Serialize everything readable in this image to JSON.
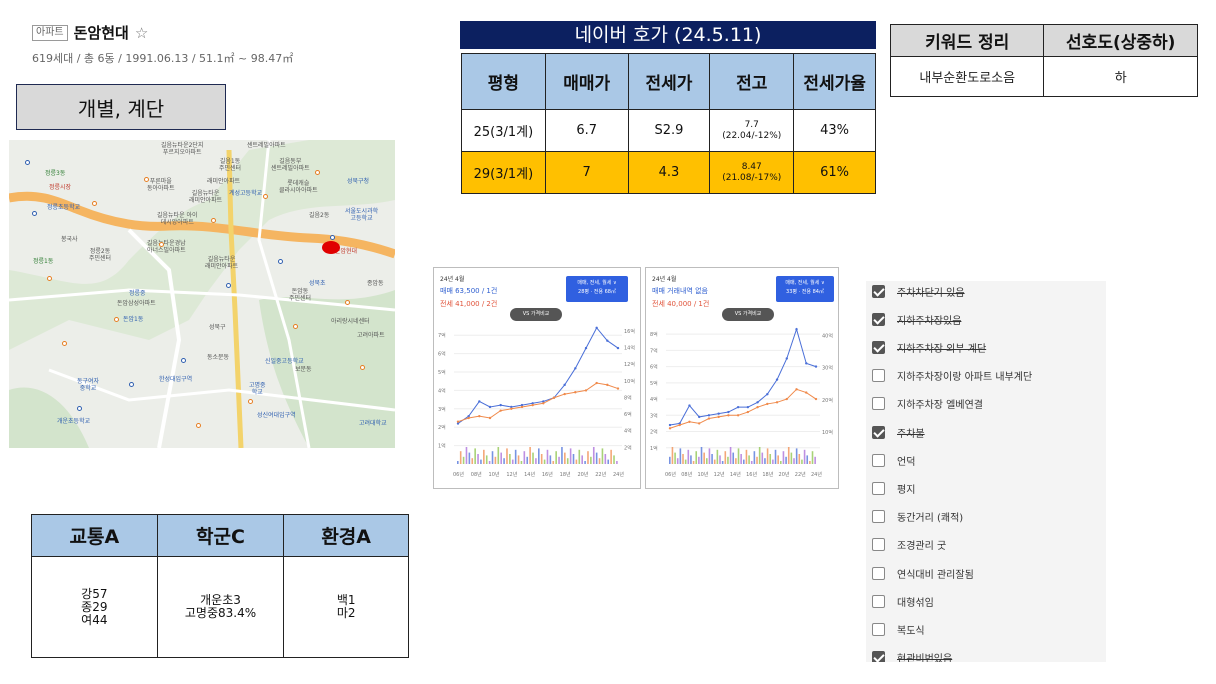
{
  "header": {
    "type_tag": "아파트",
    "name": "돈암현대",
    "star": "☆",
    "info": "619세대 / 총 6동 / 1991.06.13 / 51.1㎡ ~ 98.47㎡"
  },
  "category": "개별, 계단",
  "map": {
    "labels": [
      {
        "t": "길음뉴타운2단지\n푸르지오아파트"
      },
      {
        "t": "센트레빌아파트"
      },
      {
        "t": "길음1동\n주민센터"
      },
      {
        "t": "길음동부\n센트레빌아파트"
      },
      {
        "t": "정릉3동"
      },
      {
        "t": "래미안아파트"
      },
      {
        "t": "롯데캐슬\n클라시아아파트"
      },
      {
        "t": "성북구청"
      },
      {
        "t": "정릉시장"
      },
      {
        "t": "계성고등학교"
      },
      {
        "t": "푸른마을\n동아아파트"
      },
      {
        "t": "길음뉴타운\n래미안아파트"
      },
      {
        "t": "서울도시과학\n고등학교"
      },
      {
        "t": "정릉초등학교"
      },
      {
        "t": "길음뉴타운 아이\n데시앙아파트"
      },
      {
        "t": "길음2동"
      },
      {
        "t": "봉국사"
      },
      {
        "t": "정릉2동\n주민센터"
      },
      {
        "t": "길음뉴타운경남\n아너스빌아파트"
      },
      {
        "t": "정릉1동"
      },
      {
        "t": "길음뉴타운\n래미안아파트"
      },
      {
        "t": "돈암현대"
      },
      {
        "t": "성북초"
      },
      {
        "t": "돈암동\n주민센터"
      },
      {
        "t": "정릉중"
      },
      {
        "t": "종암동"
      },
      {
        "t": "돈암삼성아파트"
      },
      {
        "t": "돈암1동"
      },
      {
        "t": "아리랑시네센터"
      },
      {
        "t": "고려아파트"
      },
      {
        "t": "성북구"
      },
      {
        "t": "신일중고등학교"
      },
      {
        "t": "고명중\n학교"
      },
      {
        "t": "동소문동"
      },
      {
        "t": "한성대입구역"
      },
      {
        "t": "성신여대입구역"
      },
      {
        "t": "동구여자\n중학교"
      },
      {
        "t": "개운초등학교"
      },
      {
        "t": "보문동"
      },
      {
        "t": "고려대학교"
      }
    ],
    "dots": 22
  },
  "price": {
    "title": "네이버 호가 (24.5.11)",
    "headers": [
      "평형",
      "매매가",
      "전세가",
      "전고",
      "전세가율"
    ],
    "rows": [
      {
        "size": "25(3/1계)",
        "sale": "6.7",
        "jeonse": "S2.9",
        "peak": "7.7",
        "peak_sub": "(22.04/-12%)",
        "ratio": "43%",
        "highlight": false
      },
      {
        "size": "29(3/1계)",
        "sale": "7",
        "jeonse": "4.3",
        "peak": "8.47",
        "peak_sub": "(21.08/-17%)",
        "ratio": "61%",
        "highlight": true
      }
    ]
  },
  "keywords": {
    "headers": [
      "키워드 정리",
      "선호도(상중하)"
    ],
    "row": [
      "내부순환도로소음",
      "하"
    ]
  },
  "charts": [
    {
      "date": "24년 4월",
      "sale": "매매 63,500 / 1건",
      "rent": "전세 41,000 / 2건",
      "button_line1": "매매, 전세, 월세 ∨",
      "button_line2": "28평 · 전용 68㎡",
      "vs": "VS 가격비교"
    },
    {
      "date": "24년 4월",
      "sale": "매매 거래내역 없음",
      "rent": "전세 40,000 / 1건",
      "button_line1": "매매, 전세, 월세 ∨",
      "button_line2": "33평 · 전용 84㎡",
      "vs": "VS 가격비교"
    }
  ],
  "chart_data": [
    {
      "type": "line",
      "x_ticks": [
        "06년",
        "08년",
        "10년",
        "12년",
        "14년",
        "16년",
        "18년",
        "20년",
        "22년",
        "24년"
      ],
      "y_left_ticks": [
        "1억",
        "2억",
        "3억",
        "4억",
        "5억",
        "6억",
        "7억"
      ],
      "y_right_ticks": [
        "2억",
        "4억",
        "6억",
        "8억",
        "10억",
        "12억",
        "14억",
        "16억"
      ],
      "series": [
        {
          "name": "매매",
          "color": "#4a6fd8",
          "values": [
            2.2,
            2.6,
            3.4,
            3.1,
            3.2,
            3.1,
            3.2,
            3.3,
            3.4,
            3.6,
            4.3,
            5.2,
            6.3,
            7.4,
            6.7,
            6.3
          ]
        },
        {
          "name": "전세",
          "color": "#f08a4b",
          "values": [
            2.3,
            2.5,
            2.6,
            2.5,
            2.9,
            3.0,
            3.1,
            3.2,
            3.3,
            3.6,
            3.8,
            3.9,
            4.0,
            4.4,
            4.3,
            4.1
          ]
        }
      ]
    },
    {
      "type": "line",
      "x_ticks": [
        "06년",
        "08년",
        "10년",
        "12년",
        "14년",
        "16년",
        "18년",
        "20년",
        "22년",
        "24년"
      ],
      "y_left_ticks": [
        "1억",
        "2억",
        "3억",
        "4억",
        "5억",
        "6억",
        "7억",
        "8억"
      ],
      "y_right_ticks": [
        "10억",
        "20억",
        "30억",
        "40억"
      ],
      "series": [
        {
          "name": "매매",
          "color": "#4a6fd8",
          "values": [
            2.4,
            2.5,
            3.6,
            2.9,
            3.0,
            3.1,
            3.2,
            3.5,
            3.5,
            3.8,
            4.3,
            5.2,
            6.5,
            8.3,
            6.2,
            6.0
          ]
        },
        {
          "name": "전세",
          "color": "#f08a4b",
          "values": [
            2.2,
            2.4,
            2.6,
            2.5,
            2.8,
            2.9,
            3.0,
            3.0,
            3.2,
            3.5,
            3.7,
            3.8,
            4.0,
            4.6,
            4.4,
            4.0
          ]
        }
      ]
    }
  ],
  "scores": {
    "headers": [
      "교통A",
      "학군C",
      "환경A"
    ],
    "values": [
      "강57\n종29\n여44",
      "개운초3\n고명중83.4%",
      "백1\n마2"
    ]
  },
  "checklist": [
    {
      "label": "주차차단기 있음",
      "checked": true,
      "strike": true
    },
    {
      "label": "지하주차장있음",
      "checked": true,
      "strike": true
    },
    {
      "label": "지하주차장 외부 계단",
      "checked": true,
      "strike": true
    },
    {
      "label": "지하주차장이랑 아파트 내부계단",
      "checked": false,
      "strike": false
    },
    {
      "label": "지하주차장 엘베연결",
      "checked": false,
      "strike": false
    },
    {
      "label": "주차불",
      "checked": true,
      "strike": true
    },
    {
      "label": "언덕",
      "checked": false,
      "strike": false
    },
    {
      "label": "평지",
      "checked": false,
      "strike": false
    },
    {
      "label": "동간거리 (쾌적)",
      "checked": false,
      "strike": false
    },
    {
      "label": "조경관리 굿",
      "checked": false,
      "strike": false
    },
    {
      "label": "연식대비 관리잘됨",
      "checked": false,
      "strike": false
    },
    {
      "label": "대형섞임",
      "checked": false,
      "strike": false
    },
    {
      "label": "복도식",
      "checked": false,
      "strike": false
    },
    {
      "label": "현관비번있음",
      "checked": true,
      "strike": true
    }
  ]
}
